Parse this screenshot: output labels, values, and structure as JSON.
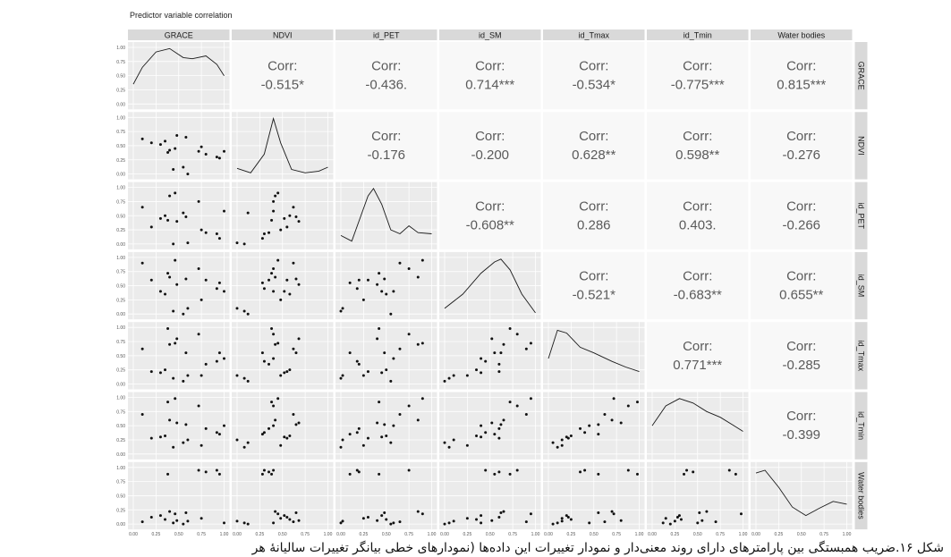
{
  "caption": "شکل ۱۶.ضریب همبستگی بین پارامترهای دارای روند معنی‌دار و نمودار تغییرات این داده‌ها (نمودارهای خطی بیانگر تغییرات سالیانهٔ هر",
  "chart_data": {
    "type": "scatter",
    "title": "Predictor variable correlation",
    "variables": [
      "GRACE",
      "NDVI",
      "id_PET",
      "id_SM",
      "id_Tmax",
      "id_Tmin",
      "Water bodies"
    ],
    "corr_label": "Corr:",
    "correlations": [
      {
        "row": 0,
        "col": 1,
        "value": "-0.515*"
      },
      {
        "row": 0,
        "col": 2,
        "value": "-0.436."
      },
      {
        "row": 0,
        "col": 3,
        "value": "0.714***"
      },
      {
        "row": 0,
        "col": 4,
        "value": "-0.534*"
      },
      {
        "row": 0,
        "col": 5,
        "value": "-0.775***"
      },
      {
        "row": 0,
        "col": 6,
        "value": "0.815***"
      },
      {
        "row": 1,
        "col": 2,
        "value": "-0.176"
      },
      {
        "row": 1,
        "col": 3,
        "value": "-0.200"
      },
      {
        "row": 1,
        "col": 4,
        "value": "0.628**"
      },
      {
        "row": 1,
        "col": 5,
        "value": "0.598**"
      },
      {
        "row": 1,
        "col": 6,
        "value": "-0.276"
      },
      {
        "row": 2,
        "col": 3,
        "value": "-0.608**"
      },
      {
        "row": 2,
        "col": 4,
        "value": "0.286"
      },
      {
        "row": 2,
        "col": 5,
        "value": "0.403."
      },
      {
        "row": 2,
        "col": 6,
        "value": "-0.266"
      },
      {
        "row": 3,
        "col": 4,
        "value": "-0.521*"
      },
      {
        "row": 3,
        "col": 5,
        "value": "-0.683**"
      },
      {
        "row": 3,
        "col": 6,
        "value": "0.655**"
      },
      {
        "row": 4,
        "col": 5,
        "value": "0.771***"
      },
      {
        "row": 4,
        "col": 6,
        "value": "-0.285"
      },
      {
        "row": 5,
        "col": 6,
        "value": "-0.399"
      }
    ],
    "y_ticks": [
      "0.00",
      "0.25",
      "0.50",
      "0.75",
      "1.00"
    ],
    "x_ticks": [
      "0.00",
      "0.25",
      "0.50",
      "0.75",
      "1.00"
    ],
    "axis_range": [
      0,
      1
    ],
    "grid": true,
    "density_curves": [
      [
        [
          0,
          0.35
        ],
        [
          0.1,
          0.65
        ],
        [
          0.25,
          0.92
        ],
        [
          0.4,
          0.98
        ],
        [
          0.55,
          0.82
        ],
        [
          0.65,
          0.8
        ],
        [
          0.8,
          0.85
        ],
        [
          0.92,
          0.7
        ],
        [
          1,
          0.5
        ]
      ],
      [
        [
          0,
          0.1
        ],
        [
          0.15,
          0.02
        ],
        [
          0.3,
          0.35
        ],
        [
          0.4,
          0.98
        ],
        [
          0.48,
          0.55
        ],
        [
          0.6,
          0.08
        ],
        [
          0.75,
          0.02
        ],
        [
          0.9,
          0.05
        ],
        [
          1,
          0.12
        ]
      ],
      [
        [
          0,
          0.15
        ],
        [
          0.12,
          0.05
        ],
        [
          0.3,
          0.85
        ],
        [
          0.36,
          0.98
        ],
        [
          0.45,
          0.7
        ],
        [
          0.55,
          0.25
        ],
        [
          0.65,
          0.18
        ],
        [
          0.75,
          0.32
        ],
        [
          0.85,
          0.2
        ],
        [
          1,
          0.18
        ]
      ],
      [
        [
          0,
          0.1
        ],
        [
          0.2,
          0.35
        ],
        [
          0.4,
          0.72
        ],
        [
          0.55,
          0.92
        ],
        [
          0.62,
          0.97
        ],
        [
          0.72,
          0.78
        ],
        [
          0.85,
          0.35
        ],
        [
          1,
          0.02
        ]
      ],
      [
        [
          0,
          0.45
        ],
        [
          0.1,
          0.95
        ],
        [
          0.2,
          0.9
        ],
        [
          0.35,
          0.65
        ],
        [
          0.5,
          0.55
        ],
        [
          0.7,
          0.4
        ],
        [
          0.85,
          0.3
        ],
        [
          1,
          0.22
        ]
      ],
      [
        [
          0,
          0.5
        ],
        [
          0.15,
          0.85
        ],
        [
          0.3,
          0.98
        ],
        [
          0.45,
          0.9
        ],
        [
          0.6,
          0.75
        ],
        [
          0.75,
          0.65
        ],
        [
          0.9,
          0.5
        ],
        [
          1,
          0.4
        ]
      ],
      [
        [
          0,
          0.9
        ],
        [
          0.1,
          0.95
        ],
        [
          0.25,
          0.65
        ],
        [
          0.4,
          0.3
        ],
        [
          0.55,
          0.15
        ],
        [
          0.7,
          0.28
        ],
        [
          0.85,
          0.4
        ],
        [
          1,
          0.35
        ]
      ]
    ],
    "observations": [
      [
        0.44,
        0.08,
        0.0,
        0.05,
        0.1,
        0.12,
        0.02
      ],
      [
        0.6,
        0.0,
        0.02,
        0.1,
        0.15,
        0.25,
        0.05
      ],
      [
        0.55,
        0.12,
        0.55,
        0.0,
        0.05,
        0.2,
        0.0
      ],
      [
        0.95,
        0.28,
        0.1,
        0.55,
        0.55,
        0.35,
        0.88
      ],
      [
        0.92,
        0.3,
        0.18,
        0.45,
        0.4,
        0.38,
        0.95
      ],
      [
        0.8,
        0.35,
        0.2,
        0.6,
        0.35,
        0.45,
        0.92
      ],
      [
        0.38,
        0.38,
        0.42,
        0.72,
        0.98,
        0.92,
        0.88
      ],
      [
        0.72,
        0.4,
        0.75,
        0.8,
        0.88,
        0.85,
        0.95
      ],
      [
        0.4,
        0.42,
        0.85,
        0.65,
        0.7,
        0.6,
        0.22
      ],
      [
        0.46,
        0.45,
        0.9,
        0.95,
        0.72,
        0.98,
        0.18
      ],
      [
        0.75,
        0.48,
        0.25,
        0.25,
        0.15,
        0.15,
        0.1
      ],
      [
        0.3,
        0.52,
        0.45,
        0.4,
        0.2,
        0.3,
        0.15
      ],
      [
        0.2,
        0.55,
        0.3,
        0.6,
        0.22,
        0.28,
        0.12
      ],
      [
        0.35,
        0.58,
        0.5,
        0.35,
        0.25,
        0.32,
        0.08
      ],
      [
        0.1,
        0.62,
        0.65,
        0.9,
        0.62,
        0.7,
        0.04
      ],
      [
        0.58,
        0.65,
        0.48,
        0.62,
        0.55,
        0.52,
        0.2
      ],
      [
        0.48,
        0.68,
        0.4,
        0.52,
        0.8,
        0.55,
        0.06
      ],
      [
        1.0,
        0.4,
        0.58,
        0.4,
        0.45,
        0.5,
        0.02
      ]
    ]
  }
}
